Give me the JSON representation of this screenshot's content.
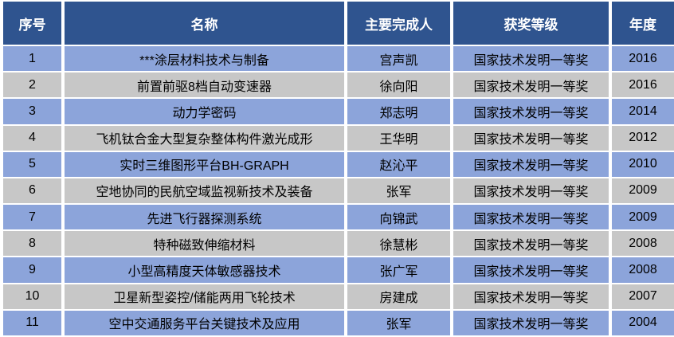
{
  "table": {
    "name": "national-technology-invention-award-list",
    "columns": [
      {
        "label": "序号"
      },
      {
        "label": "名称"
      },
      {
        "label": "主要完成人"
      },
      {
        "label": "获奖等级"
      },
      {
        "label": "年度"
      }
    ],
    "rows": [
      [
        "1",
        "***涂层材料技术与制备",
        "宫声凯",
        "国家技术发明一等奖",
        "2016"
      ],
      [
        "2",
        "前置前驱8档自动变速器",
        "徐向阳",
        "国家技术发明一等奖",
        "2016"
      ],
      [
        "3",
        "动力学密码",
        "郑志明",
        "国家技术发明一等奖",
        "2014"
      ],
      [
        "4",
        "飞机钛合金大型复杂整体构件激光成形",
        "王华明",
        "国家技术发明一等奖",
        "2012"
      ],
      [
        "5",
        "实时三维图形平台BH-GRAPH",
        "赵沁平",
        "国家技术发明一等奖",
        "2010"
      ],
      [
        "6",
        "空地协同的民航空域监视新技术及装备",
        "张军",
        "国家技术发明一等奖",
        "2009"
      ],
      [
        "7",
        "先进飞行器探测系统",
        "向锦武",
        "国家技术发明一等奖",
        "2009"
      ],
      [
        "8",
        "特种磁致伸缩材料",
        "徐慧彬",
        "国家技术发明一等奖",
        "2008"
      ],
      [
        "9",
        "小型高精度天体敏感器技术",
        "张广军",
        "国家技术发明一等奖",
        "2008"
      ],
      [
        "10",
        "卫星新型姿控/储能两用飞轮技术",
        "房建成",
        "国家技术发明一等奖",
        "2007"
      ],
      [
        "11",
        "空中交通服务平台关键技术及应用",
        "张军",
        "国家技术发明一等奖",
        "2004"
      ]
    ]
  },
  "colors": {
    "header_bg": "#2F548F",
    "row_blue": "#8CA4DA",
    "row_gray": "#C7C7C7",
    "border": "#FFFFFF",
    "header_text": "#FFFFFF",
    "cell_text": "#000000"
  }
}
